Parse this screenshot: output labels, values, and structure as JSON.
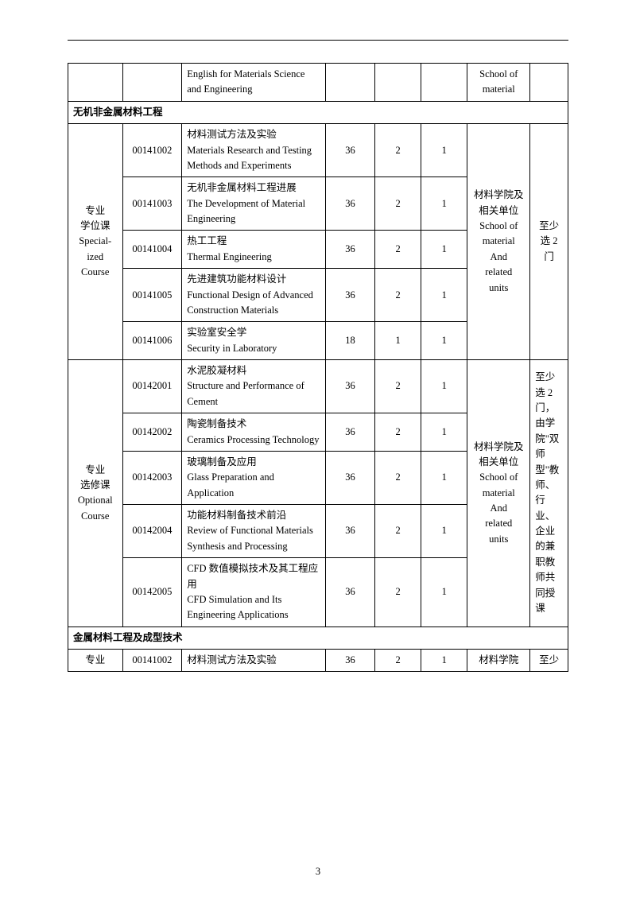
{
  "pageNumber": "3",
  "topRow": {
    "course_en": "English for Materials Science and Engineering",
    "unit_en": "School of material"
  },
  "section1": {
    "header": "无机非金属材料工程",
    "groupA": {
      "label_cn1": "专业",
      "label_cn2": "学位课",
      "label_en1": "Special-",
      "label_en2": "ized",
      "label_en3": "Course",
      "unit_cn": "材料学院及相关单位",
      "unit_en1": "School of",
      "unit_en2": "material",
      "unit_en3": "And",
      "unit_en4": "related",
      "unit_en5": "units",
      "note": "至少选 2 门",
      "rows": [
        {
          "code": "00141002",
          "name_cn": "材料测试方法及实验",
          "name_en": "Materials Research and Testing Methods and Experiments",
          "h": "36",
          "c": "2",
          "t": "1"
        },
        {
          "code": "00141003",
          "name_cn": "无机非金属材料工程进展",
          "name_en": "The Development of Material Engineering",
          "h": "36",
          "c": "2",
          "t": "1"
        },
        {
          "code": "00141004",
          "name_cn": "热工工程",
          "name_en": "Thermal Engineering",
          "h": "36",
          "c": "2",
          "t": "1"
        },
        {
          "code": "00141005",
          "name_cn": "先进建筑功能材料设计",
          "name_en": "Functional Design of Advanced Construction Materials",
          "h": "36",
          "c": "2",
          "t": "1"
        },
        {
          "code": "00141006",
          "name_cn": "实验室安全学",
          "name_en": "Security in Laboratory",
          "h": "18",
          "c": "1",
          "t": "1"
        }
      ]
    },
    "groupB": {
      "label_cn1": "专业",
      "label_cn2": "选修课",
      "label_en1": "Optional",
      "label_en2": "Course",
      "unit_cn": "材料学院及相关单位",
      "unit_en1": "School of",
      "unit_en2": "material",
      "unit_en3": "And",
      "unit_en4": "related",
      "unit_en5": "units",
      "note": "至少选 2 门，由学院\"双师型\"教师、行业、企业的兼职教师共同授课",
      "rows": [
        {
          "code": "00142001",
          "name_cn": "水泥胶凝材料",
          "name_en": "Structure and Performance of Cement",
          "h": "36",
          "c": "2",
          "t": "1"
        },
        {
          "code": "00142002",
          "name_cn": "陶瓷制备技术",
          "name_en": "Ceramics Processing Technology",
          "h": "36",
          "c": "2",
          "t": "1"
        },
        {
          "code": "00142003",
          "name_cn": "玻璃制备及应用",
          "name_en": "Glass Preparation and Application",
          "h": "36",
          "c": "2",
          "t": "1"
        },
        {
          "code": "00142004",
          "name_cn": "功能材料制备技术前沿",
          "name_en": "Review of Functional Materials Synthesis and Processing",
          "h": "36",
          "c": "2",
          "t": "1"
        },
        {
          "code": "00142005",
          "name_cn": "CFD 数值模拟技术及其工程应用",
          "name_en": "CFD Simulation and Its Engineering Applications",
          "h": "36",
          "c": "2",
          "t": "1"
        }
      ]
    }
  },
  "section2": {
    "header": "金属材料工程及成型技术",
    "row": {
      "label": "专业",
      "code": "00141002",
      "name_cn": "材料测试方法及实验",
      "h": "36",
      "c": "2",
      "t": "1",
      "unit": "材料学院",
      "note": "至少"
    }
  }
}
